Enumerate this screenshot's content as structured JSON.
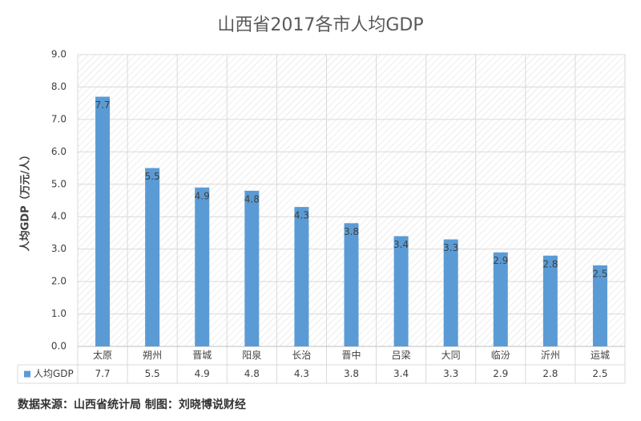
{
  "chart_data": {
    "type": "bar",
    "title": "山西省2017各市人均GDP",
    "y_label": "人均GDP（万元/人）",
    "categories": [
      "太原",
      "朔州",
      "晋城",
      "阳泉",
      "长治",
      "晋中",
      "吕梁",
      "大同",
      "临汾",
      "沂州",
      "运城"
    ],
    "series": [
      {
        "name": "人均GDP",
        "color": "#5b9bd5",
        "values": [
          7.7,
          5.5,
          4.9,
          4.8,
          4.3,
          3.8,
          3.4,
          3.3,
          2.9,
          2.8,
          2.5
        ]
      }
    ],
    "ylim": [
      0,
      9
    ],
    "yticks": [
      {
        "value": 0,
        "label": "0.0"
      },
      {
        "value": 1,
        "label": "1.0"
      },
      {
        "value": 2,
        "label": "2.0"
      },
      {
        "value": 3,
        "label": "3.0"
      },
      {
        "value": 4,
        "label": "4.0"
      },
      {
        "value": 5,
        "label": "5.0"
      },
      {
        "value": 6,
        "label": "6.0"
      },
      {
        "value": 7,
        "label": "7.0"
      },
      {
        "value": 8,
        "label": "8.0"
      },
      {
        "value": 9,
        "label": "9.0"
      }
    ],
    "grid": true,
    "data_table": true
  },
  "source_note": "数据来源：山西省统计局 制图：刘晓博说财经"
}
